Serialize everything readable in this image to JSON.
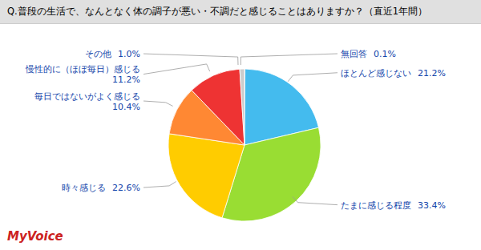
{
  "chart_data": {
    "type": "pie",
    "title": "Q.普段の生活で、なんとなく体の調子が悪い・不調だと感じることはありますか？（直近1年間）",
    "categories": [
      "無回答",
      "ほとんど感じない",
      "たまに感じる程度",
      "時々感じる",
      "毎日ではないがよく感じる",
      "慢性的に（ほぼ毎日）感じる",
      "その他"
    ],
    "values": [
      0.1,
      21.2,
      33.4,
      22.6,
      10.4,
      11.2,
      1.0
    ],
    "value_labels": [
      "0.1%",
      "21.2%",
      "33.4%",
      "22.6%",
      "10.4%",
      "11.2%",
      "1.0%"
    ],
    "colors": [
      "#7777cc",
      "#44bbee",
      "#99dd33",
      "#ffcc00",
      "#ff8833",
      "#ee3333",
      "#cccccc"
    ],
    "annotations": [
      "MyVoice"
    ]
  }
}
